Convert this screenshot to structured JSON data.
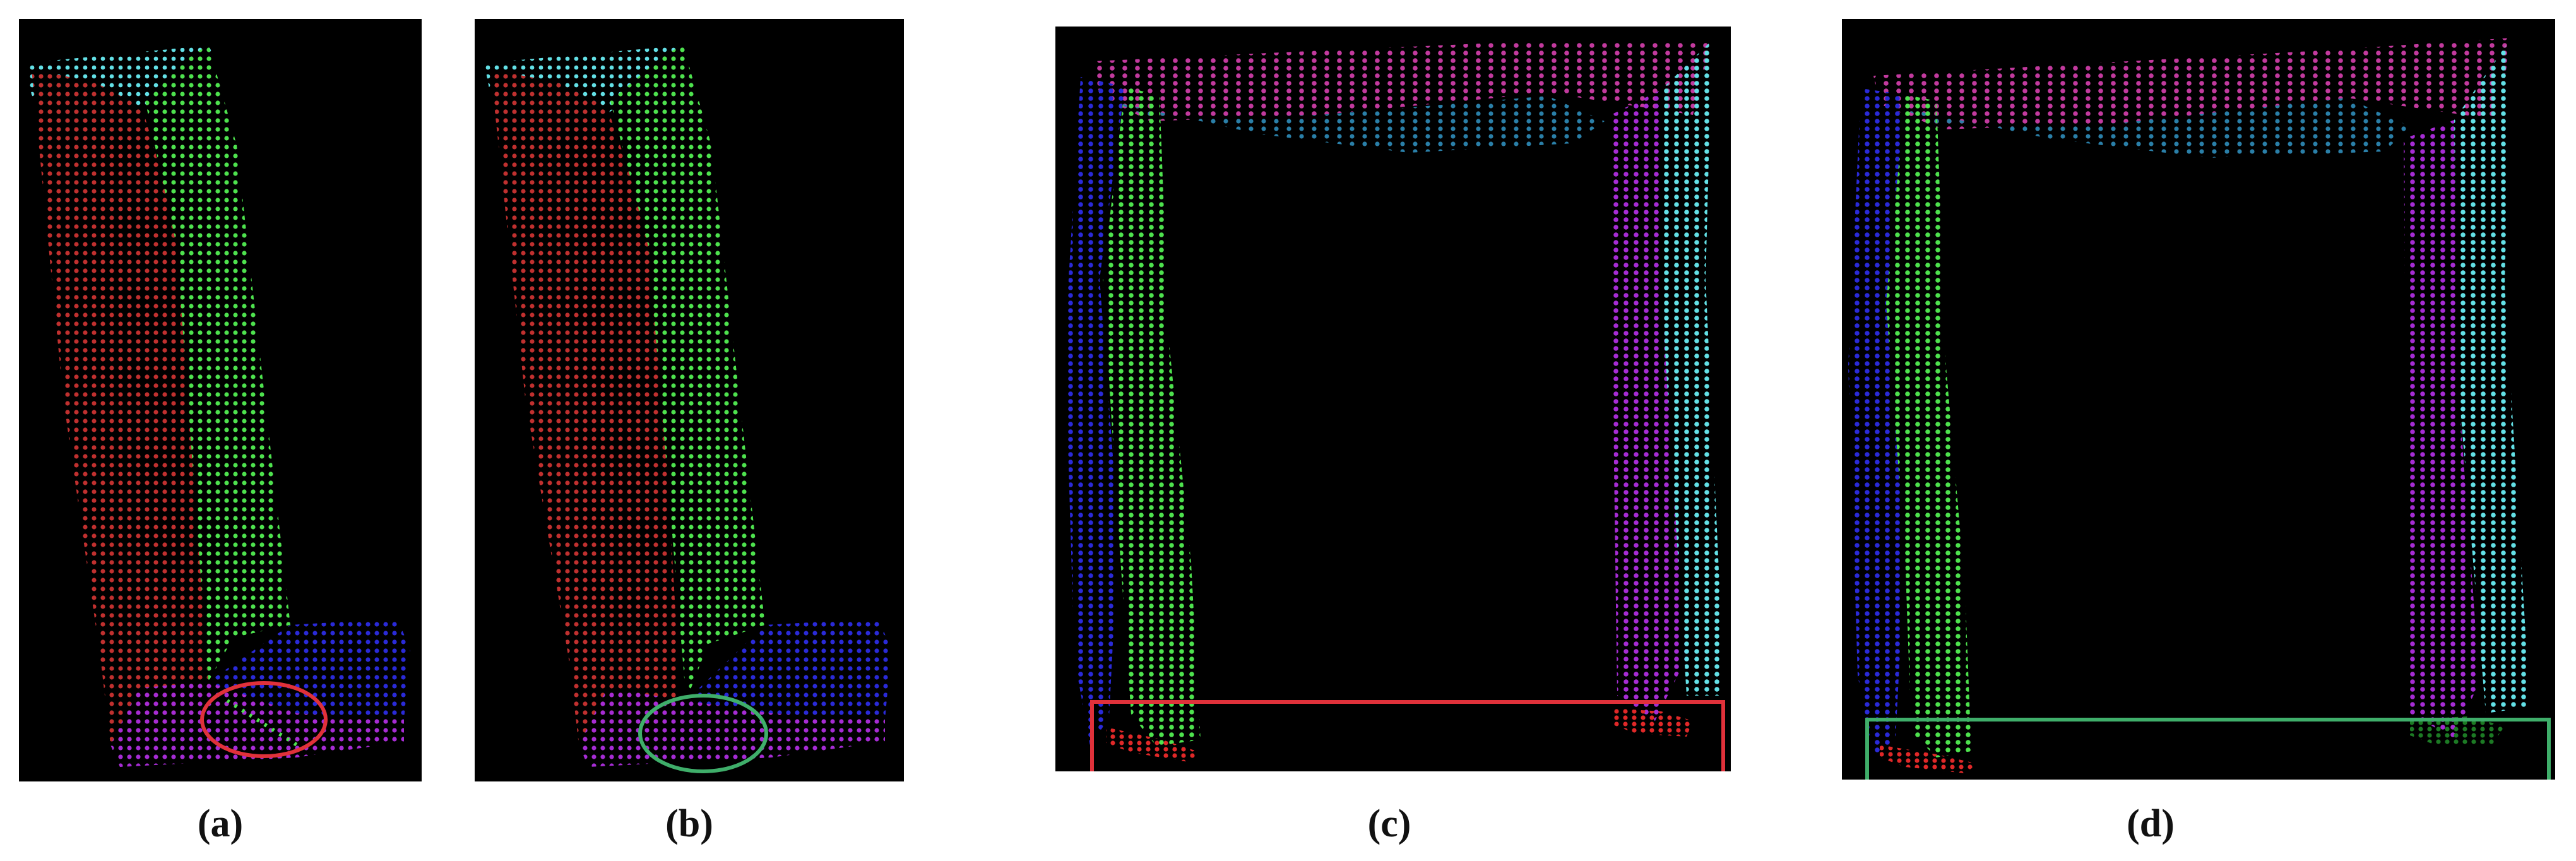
{
  "colors": {
    "background": "#000000",
    "red_segment": "#c0302f",
    "green_segment": "#4ee24e",
    "cyan_segment": "#63e0e6",
    "blue_segment": "#2a2ad8",
    "purple_segment": "#a62cd4",
    "magenta_segment": "#c23a9e",
    "teal_segment": "#2a7fa8",
    "dark_green_segment": "#1c7a24",
    "error_marker": "#e0313a",
    "correct_marker": "#3fae6a"
  },
  "panels": [
    {
      "id": "a",
      "label": "(a)",
      "marker": "ellipse",
      "marker_state": "error"
    },
    {
      "id": "b",
      "label": "(b)",
      "marker": "ellipse",
      "marker_state": "correct"
    },
    {
      "id": "c",
      "label": "(c)",
      "marker": "rectangle",
      "marker_state": "error"
    },
    {
      "id": "d",
      "label": "(d)",
      "marker": "rectangle",
      "marker_state": "correct"
    }
  ]
}
